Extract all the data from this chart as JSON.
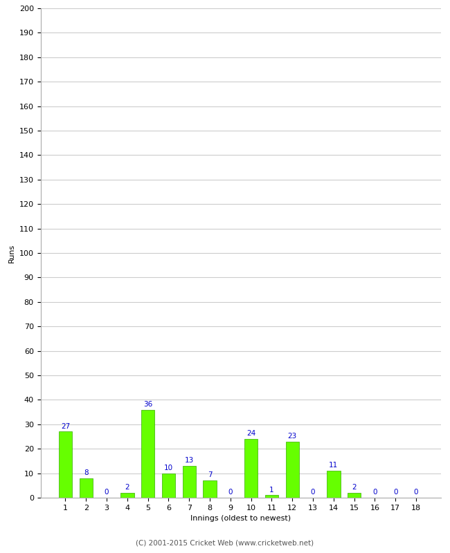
{
  "xlabel": "Innings (oldest to newest)",
  "ylabel": "Runs",
  "categories": [
    1,
    2,
    3,
    4,
    5,
    6,
    7,
    8,
    9,
    10,
    11,
    12,
    13,
    14,
    15,
    16,
    17,
    18
  ],
  "values": [
    27,
    8,
    0,
    2,
    36,
    10,
    13,
    7,
    0,
    24,
    1,
    23,
    0,
    11,
    2,
    0,
    0,
    0
  ],
  "bar_color": "#66ff00",
  "bar_edge_color": "#33aa00",
  "label_color": "#0000cc",
  "ylim": [
    0,
    200
  ],
  "yticks": [
    0,
    10,
    20,
    30,
    40,
    50,
    60,
    70,
    80,
    90,
    100,
    110,
    120,
    130,
    140,
    150,
    160,
    170,
    180,
    190,
    200
  ],
  "background_color": "#ffffff",
  "grid_color": "#cccccc",
  "footer": "(C) 2001-2015 Cricket Web (www.cricketweb.net)",
  "label_fontsize": 7.5,
  "axis_tick_fontsize": 8,
  "footer_fontsize": 7.5,
  "ylabel_fontsize": 8,
  "xlabel_fontsize": 8
}
